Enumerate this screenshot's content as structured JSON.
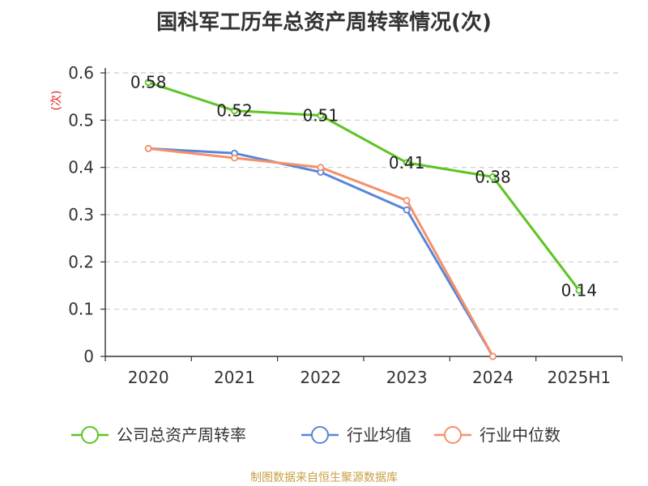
{
  "chart_data": {
    "type": "line",
    "title": "国科军工历年总资产周转率情况(次)",
    "ylabel": "(次)",
    "xlabel": "",
    "categories": [
      "2020",
      "2021",
      "2022",
      "2023",
      "2024",
      "2025H1"
    ],
    "ylim": [
      0,
      0.6
    ],
    "yticks": [
      "0",
      "0.1",
      "0.2",
      "0.3",
      "0.4",
      "0.5",
      "0.6"
    ],
    "grid": true,
    "legend_position": "bottom",
    "series": [
      {
        "name": "公司总资产周转率",
        "color": "#5ec424",
        "values": [
          0.58,
          0.52,
          0.51,
          0.41,
          0.38,
          0.14
        ],
        "labels": [
          "0.58",
          "0.52",
          "0.51",
          "0.41",
          "0.38",
          "0.14"
        ]
      },
      {
        "name": "行业均值",
        "color": "#5b86d8",
        "values": [
          0.44,
          0.43,
          0.39,
          0.31,
          0.0,
          null
        ]
      },
      {
        "name": "行业中位数",
        "color": "#f4906a",
        "values": [
          0.44,
          0.42,
          0.4,
          0.33,
          0.0,
          null
        ]
      }
    ]
  },
  "source": "制图数据来自恒生聚源数据库"
}
